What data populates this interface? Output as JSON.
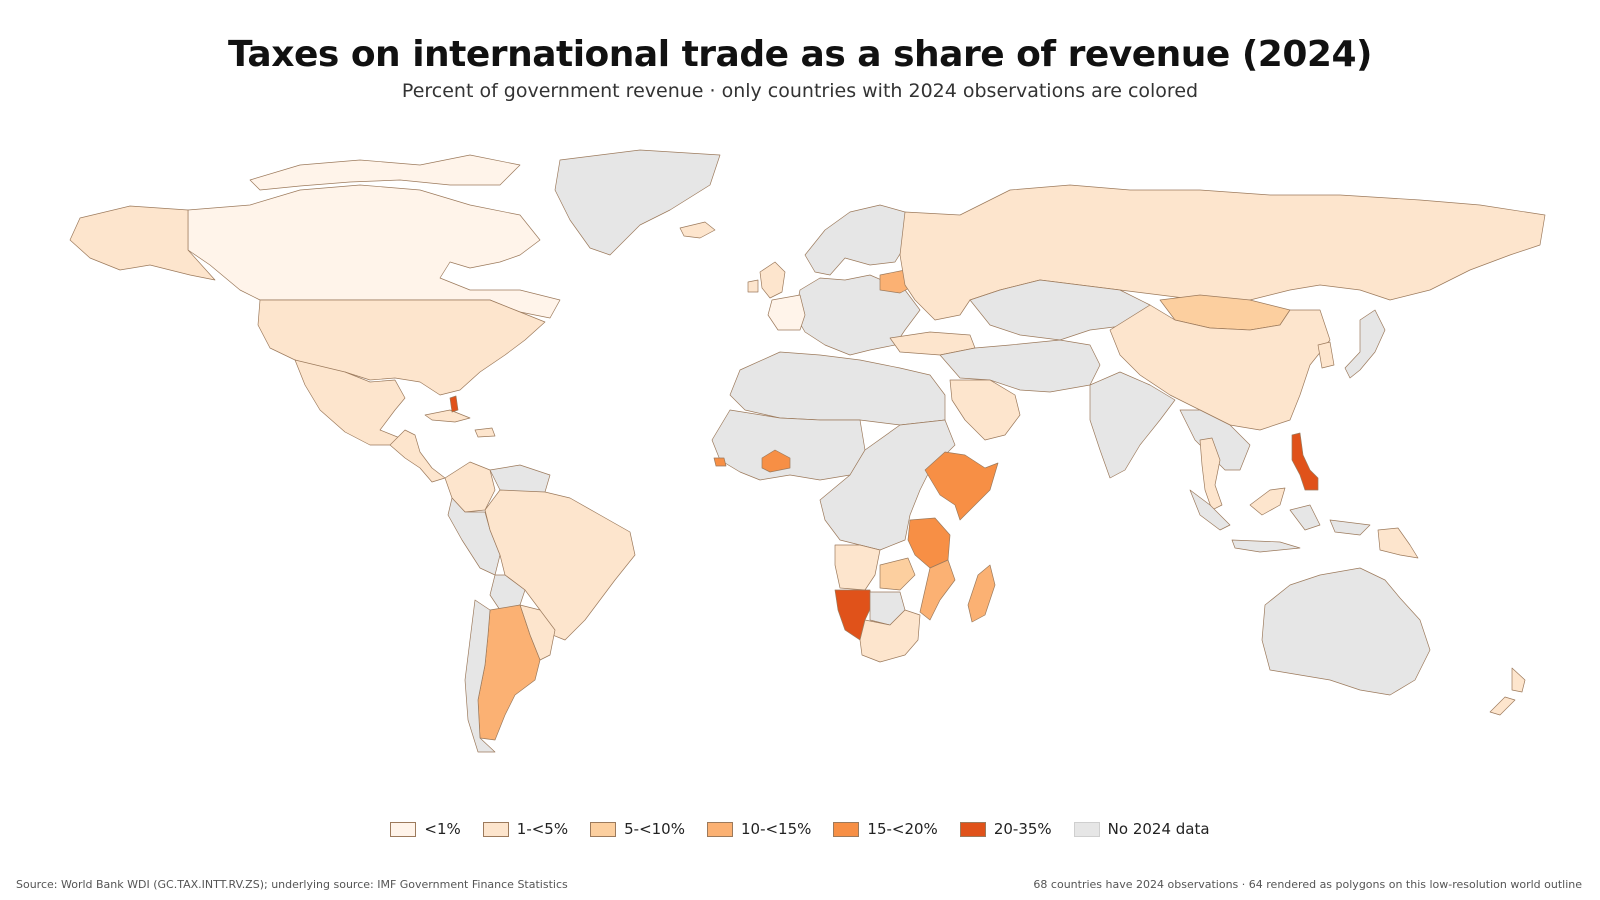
{
  "header": {
    "title": "Taxes on international trade as a share of revenue (2024)",
    "subtitle": "Percent of government revenue · only countries with 2024 observations are colored"
  },
  "legend": {
    "items": [
      {
        "label": "<1%",
        "color": "#fff4ea"
      },
      {
        "label": "1-<5%",
        "color": "#fde5cd"
      },
      {
        "label": "5-<10%",
        "color": "#fccf9f"
      },
      {
        "label": "10-<15%",
        "color": "#fbb173"
      },
      {
        "label": "15-<20%",
        "color": "#f78f45"
      },
      {
        "label": "20-35%",
        "color": "#e0521a"
      },
      {
        "label": "No 2024 data",
        "color": "#e6e6e6"
      }
    ]
  },
  "footer": {
    "source": "Source: World Bank WDI (GC.TAX.INTT.RV.ZS); underlying source: IMF Government Finance Statistics",
    "note": "68 countries have 2024 observations · 64 rendered as polygons on this low-resolution world outline"
  },
  "map": {
    "bins": {
      "lt1": "#fff4ea",
      "b1_5": "#fde5cd",
      "b5_10": "#fccf9f",
      "b10_15": "#fbb173",
      "b15_20": "#f78f45",
      "b20_35": "#e0521a",
      "nodata": "#e6e6e6"
    },
    "regions": [
      {
        "name": "canada",
        "bin": "lt1"
      },
      {
        "name": "alaska",
        "bin": "b1_5"
      },
      {
        "name": "greenland",
        "bin": "nodata"
      },
      {
        "name": "usa",
        "bin": "b1_5"
      },
      {
        "name": "mexico",
        "bin": "b1_5"
      },
      {
        "name": "central-america",
        "bin": "b1_5"
      },
      {
        "name": "colombia",
        "bin": "b1_5"
      },
      {
        "name": "venezuela",
        "bin": "nodata"
      },
      {
        "name": "brazil",
        "bin": "b1_5"
      },
      {
        "name": "peru",
        "bin": "nodata"
      },
      {
        "name": "bolivia",
        "bin": "nodata"
      },
      {
        "name": "argentina",
        "bin": "b10_15"
      },
      {
        "name": "chile",
        "bin": "nodata"
      },
      {
        "name": "uruguay-paraguay",
        "bin": "b1_5"
      },
      {
        "name": "europe",
        "bin": "nodata"
      },
      {
        "name": "scandinavia",
        "bin": "nodata"
      },
      {
        "name": "iceland",
        "bin": "b1_5"
      },
      {
        "name": "uk-ireland",
        "bin": "b1_5"
      },
      {
        "name": "france",
        "bin": "lt1"
      },
      {
        "name": "belarus",
        "bin": "b10_15"
      },
      {
        "name": "russia",
        "bin": "b1_5"
      },
      {
        "name": "kazakhstan",
        "bin": "nodata"
      },
      {
        "name": "mongolia",
        "bin": "b5_10"
      },
      {
        "name": "china",
        "bin": "b1_5"
      },
      {
        "name": "middle-east",
        "bin": "nodata"
      },
      {
        "name": "saudi-arabia",
        "bin": "b1_5"
      },
      {
        "name": "turkey",
        "bin": "b1_5"
      },
      {
        "name": "india",
        "bin": "nodata"
      },
      {
        "name": "southeast-asia",
        "bin": "nodata"
      },
      {
        "name": "thailand",
        "bin": "b1_5"
      },
      {
        "name": "philippines",
        "bin": "b20_35"
      },
      {
        "name": "malaysia",
        "bin": "b1_5"
      },
      {
        "name": "indonesia",
        "bin": "nodata"
      },
      {
        "name": "papua-new-guinea",
        "bin": "b1_5"
      },
      {
        "name": "japan",
        "bin": "nodata"
      },
      {
        "name": "korea",
        "bin": "b1_5"
      },
      {
        "name": "australia",
        "bin": "nodata"
      },
      {
        "name": "new-zealand",
        "bin": "b1_5"
      },
      {
        "name": "north-africa",
        "bin": "nodata"
      },
      {
        "name": "west-africa",
        "bin": "nodata"
      },
      {
        "name": "burkina-faso",
        "bin": "b15_20"
      },
      {
        "name": "sierra-leone",
        "bin": "b15_20"
      },
      {
        "name": "central-africa",
        "bin": "nodata"
      },
      {
        "name": "ethiopia-somalia",
        "bin": "b15_20"
      },
      {
        "name": "tanzania",
        "bin": "b15_20"
      },
      {
        "name": "angola",
        "bin": "b1_5"
      },
      {
        "name": "zambia",
        "bin": "b5_10"
      },
      {
        "name": "mozambique",
        "bin": "b10_15"
      },
      {
        "name": "namibia",
        "bin": "b20_35"
      },
      {
        "name": "botswana",
        "bin": "nodata"
      },
      {
        "name": "south-africa",
        "bin": "b1_5"
      },
      {
        "name": "madagascar",
        "bin": "b10_15"
      },
      {
        "name": "cuba-caribbean",
        "bin": "b1_5"
      },
      {
        "name": "bahamas",
        "bin": "b20_35"
      },
      {
        "name": "arctic-islands",
        "bin": "lt1"
      }
    ]
  }
}
